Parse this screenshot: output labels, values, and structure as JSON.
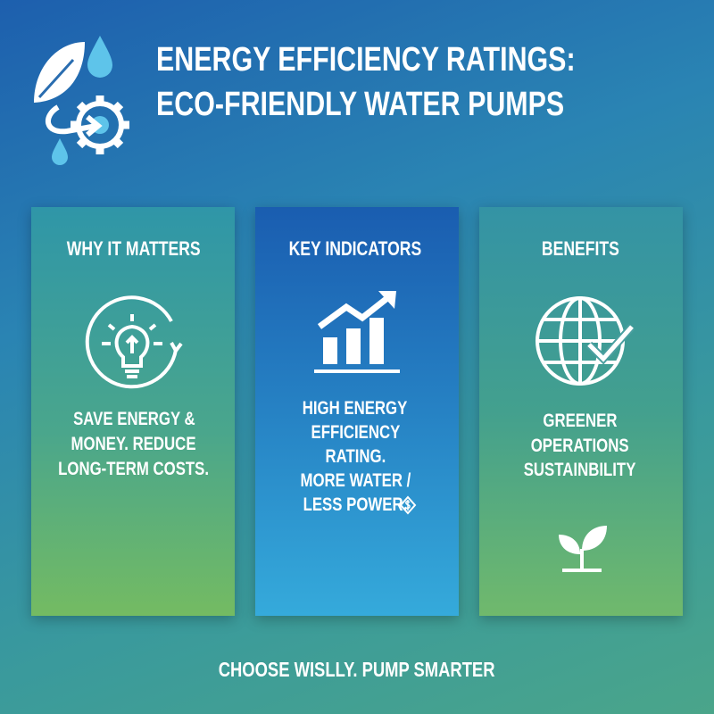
{
  "header": {
    "title_lines": [
      "ENERGY EFFICIENCY RATINGS:",
      "ECO-FRIENDLY WATER PUMPS"
    ]
  },
  "cards": [
    {
      "heading": "WHY IT MATTERS",
      "lines": [
        "SAVE ENERGY &",
        "MONEY. REDUCE",
        "LONG-TERM COSTS."
      ]
    },
    {
      "heading": "KEY INDICATORS",
      "lines": [
        "HIGH ENERGY",
        "EFFICIENCY",
        "RATING.",
        "MORE WATER /",
        "LESS POWER."
      ]
    },
    {
      "heading": "BENEFITS",
      "lines": [
        "GREENER",
        "OPERATIONS",
        "SUSTAINBILITY"
      ]
    }
  ],
  "footer": "CHOOSE WISLLY. PUMP SMARTER"
}
